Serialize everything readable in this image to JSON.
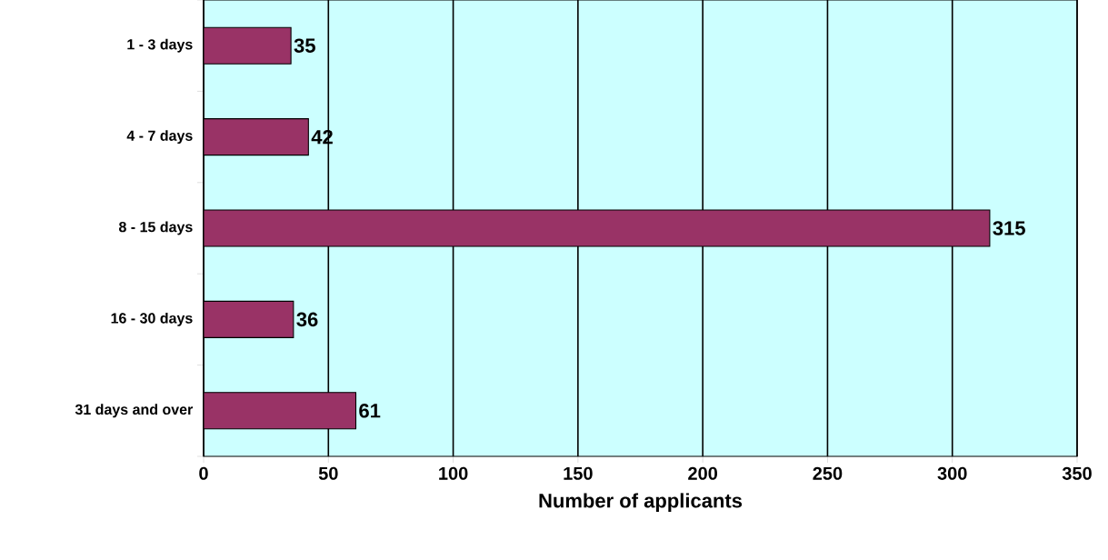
{
  "chart_data": {
    "type": "bar",
    "orientation": "horizontal",
    "xlabel": "Number of applicants",
    "categories": [
      "1 - 3 days",
      "4 - 7 days",
      "8 - 15 days",
      "16 - 30 days",
      "31 days and over"
    ],
    "values": [
      35,
      42,
      315,
      36,
      61
    ],
    "color": "#993366",
    "xlim": [
      0,
      350
    ],
    "xticks": [
      0,
      50,
      100,
      150,
      200,
      250,
      300,
      350
    ],
    "grid": "x",
    "data_labels": true
  }
}
